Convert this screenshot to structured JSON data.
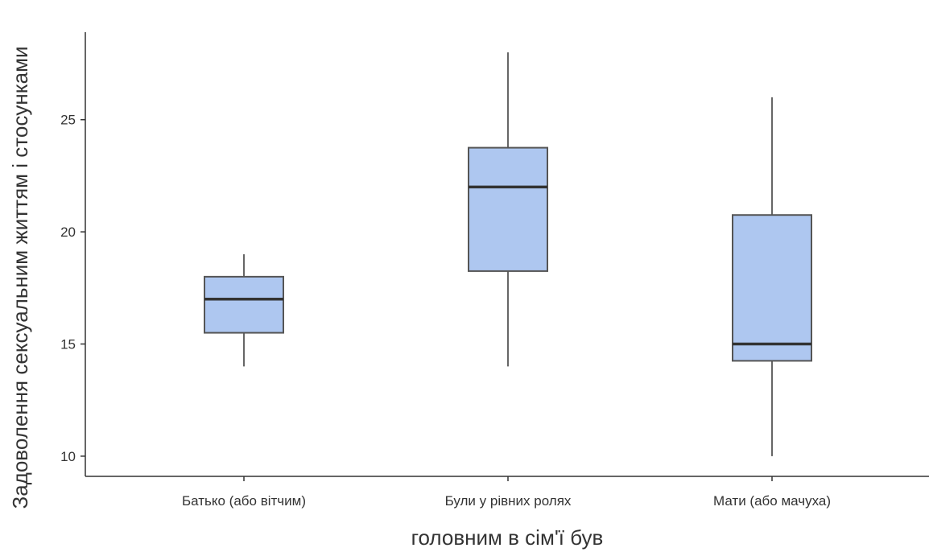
{
  "chart_data": {
    "type": "boxplot",
    "title": "",
    "xlabel": "головним в сім'ї був",
    "ylabel": "Задоволення сексуальним життям і стосунками",
    "ylim": [
      9.1,
      28.9
    ],
    "yticks": [
      10,
      15,
      20,
      25
    ],
    "categories": [
      "Батько (або вітчим)",
      "Були у рівних ролях",
      "Мати (або мачуха)"
    ],
    "boxes": [
      {
        "category": "Батько (або вітчим)",
        "min": 14,
        "q1": 15.5,
        "median": 17,
        "q3": 18,
        "max": 19
      },
      {
        "category": "Були у рівних ролях",
        "min": 14,
        "q1": 18.25,
        "median": 22,
        "q3": 23.75,
        "max": 28
      },
      {
        "category": "Мати (або мачуха)",
        "min": 10,
        "q1": 14.25,
        "median": 15,
        "q3": 20.75,
        "max": 26
      }
    ],
    "grid": false,
    "legend": "none",
    "colors": {
      "box_fill": "#aec7f0",
      "box_stroke": "#555555",
      "median": "#333333",
      "axis": "#333333"
    }
  }
}
